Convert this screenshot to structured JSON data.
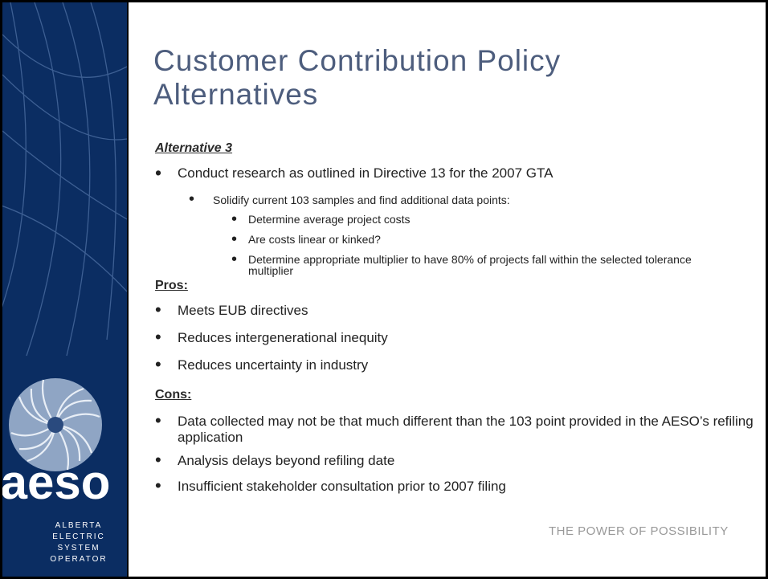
{
  "title": "Customer Contribution Policy Alternatives",
  "sidebar": {
    "logo": "aeso",
    "org": [
      "ALBERTA",
      "ELECTRIC",
      "SYSTEM",
      "OPERATOR"
    ]
  },
  "alternative": {
    "heading": "Alternative 3",
    "items": [
      {
        "text": "Conduct research as outlined in Directive 13 for the 2007 GTA",
        "level": 1
      },
      {
        "text": "Solidify current 103 samples and find additional data points:",
        "level": 2
      },
      {
        "text": "Determine average project costs",
        "level": 3
      },
      {
        "text": "Are costs linear or kinked?",
        "level": 3
      },
      {
        "text": "Determine appropriate multiplier to have 80% of projects fall within the selected tolerance multiplier",
        "level": 3
      }
    ]
  },
  "pros": {
    "heading": "Pros:",
    "items": [
      "Meets EUB directives",
      "Reduces intergenerational inequity",
      "Reduces uncertainty in industry"
    ]
  },
  "cons": {
    "heading": "Cons:",
    "items": [
      "Data collected may not be that much different than the 103 point provided in the AESO’s refiling application",
      "Analysis delays beyond refiling date",
      "Insufficient stakeholder consultation prior to 2007 filing"
    ]
  },
  "footer": "THE POWER OF POSSIBILITY"
}
